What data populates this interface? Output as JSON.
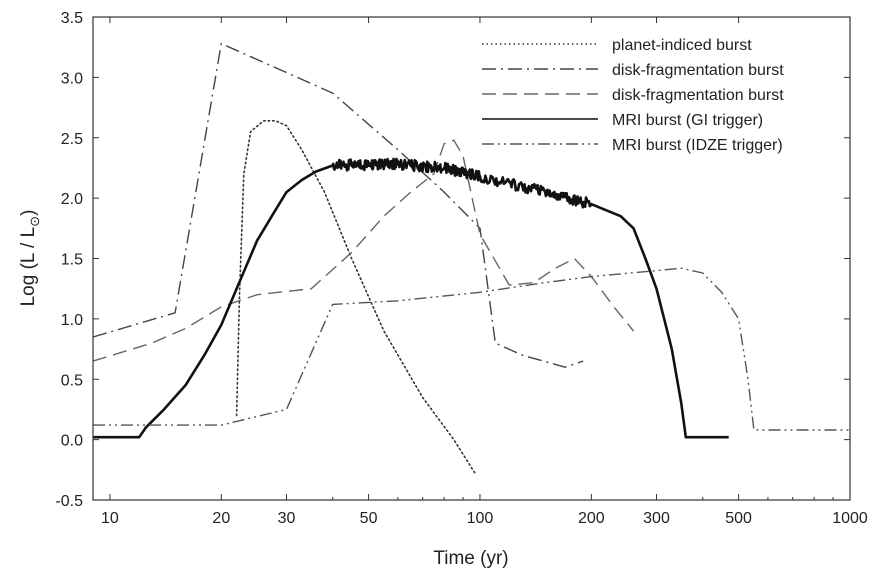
{
  "chart_data": {
    "type": "line",
    "xlabel": "Time (yr)",
    "ylabel": "Log (L / L",
    "ylabel_sub": "⊙",
    "ylabel_close": ")",
    "xscale": "log",
    "xlim": [
      9,
      1000
    ],
    "ylim": [
      -0.5,
      3.5
    ],
    "x_ticks": [
      10,
      20,
      30,
      50,
      100,
      200,
      300,
      500,
      1000
    ],
    "x_tick_labels": [
      "10",
      "20",
      "30",
      "50",
      "100",
      "200",
      "300",
      "500",
      "1000"
    ],
    "y_ticks": [
      -0.5,
      0.0,
      0.5,
      1.0,
      1.5,
      2.0,
      2.5,
      3.0,
      3.5
    ],
    "y_tick_labels": [
      "-0.5",
      "0.0",
      "0.5",
      "1.0",
      "1.5",
      "2.0",
      "2.5",
      "3.0",
      "3.5"
    ],
    "grid": false,
    "legend_position": "top-right",
    "series": [
      {
        "name": "planet-indiced burst",
        "style": "dotted",
        "color": "#333333",
        "x": [
          22,
          22.4,
          23,
          24,
          26,
          28,
          30,
          33,
          38,
          45,
          55,
          70,
          85,
          97
        ],
        "y": [
          0.2,
          1.2,
          2.2,
          2.55,
          2.64,
          2.64,
          2.6,
          2.4,
          2.05,
          1.5,
          0.9,
          0.35,
          0.0,
          -0.28
        ]
      },
      {
        "name": "disk-fragmentation burst",
        "style": "dashdot",
        "color": "#444444",
        "x": [
          9,
          15,
          20,
          40,
          60,
          80,
          100,
          110,
          130,
          170,
          190
        ],
        "y": [
          0.85,
          1.05,
          3.28,
          2.87,
          2.4,
          2.05,
          1.75,
          0.8,
          0.7,
          0.6,
          0.65
        ]
      },
      {
        "name": "disk-fragmentation burst",
        "style": "dashed",
        "color": "#666666",
        "x": [
          9,
          13,
          16,
          20,
          25,
          35,
          45,
          55,
          65,
          75,
          80,
          85,
          90,
          100,
          120,
          140,
          160,
          180,
          200,
          230,
          260
        ],
        "y": [
          0.65,
          0.8,
          0.92,
          1.1,
          1.2,
          1.25,
          1.55,
          1.85,
          2.05,
          2.2,
          2.45,
          2.48,
          2.35,
          1.7,
          1.28,
          1.3,
          1.42,
          1.5,
          1.35,
          1.1,
          0.9
        ]
      },
      {
        "name": "MRI burst (GI trigger)",
        "style": "solid",
        "color": "#111111",
        "x": [
          9,
          12,
          12.5,
          14,
          16,
          18,
          20,
          22,
          25,
          28,
          30,
          33,
          36,
          40,
          50,
          60,
          80,
          100,
          150,
          200,
          240,
          260,
          280,
          300,
          330,
          350,
          360,
          365,
          400,
          470
        ],
        "y": [
          0.02,
          0.02,
          0.1,
          0.25,
          0.45,
          0.7,
          0.95,
          1.25,
          1.65,
          1.9,
          2.05,
          2.15,
          2.22,
          2.27,
          2.28,
          2.28,
          2.25,
          2.18,
          2.05,
          1.95,
          1.85,
          1.75,
          1.5,
          1.25,
          0.75,
          0.3,
          0.02,
          0.02,
          0.02,
          0.02
        ],
        "noise": {
          "from": 40,
          "to": 230,
          "amplitude": 0.045
        }
      },
      {
        "name": "MRI burst (IDZE trigger)",
        "style": "dashdotdot",
        "color": "#555555",
        "x": [
          9,
          20,
          30,
          40,
          60,
          100,
          150,
          200,
          300,
          350,
          400,
          450,
          500,
          530,
          550,
          1000
        ],
        "y": [
          0.12,
          0.12,
          0.25,
          1.12,
          1.15,
          1.22,
          1.3,
          1.35,
          1.4,
          1.42,
          1.38,
          1.22,
          1.0,
          0.5,
          0.08,
          0.08
        ]
      }
    ]
  }
}
